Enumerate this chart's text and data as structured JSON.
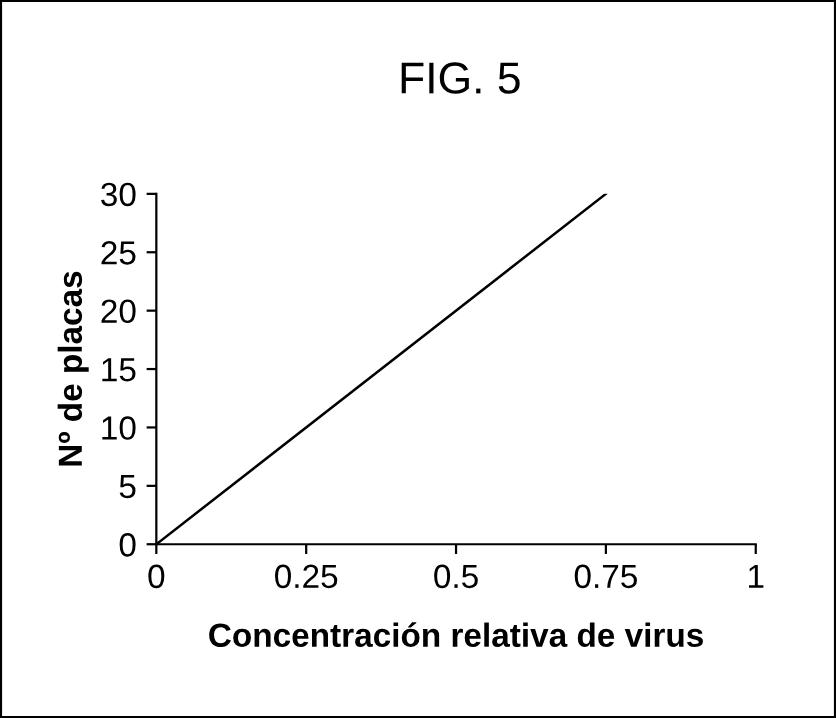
{
  "chart_data": {
    "type": "line",
    "title": "FIG. 5",
    "xlabel": "Concentración relativa de virus",
    "ylabel": "Nº de placas",
    "x": [
      0,
      0.75
    ],
    "series": [
      {
        "color": "#000000",
        "values": [
          0,
          30
        ]
      }
    ],
    "xlim": [
      0,
      1
    ],
    "xticks": [
      0,
      0.25,
      0.5,
      0.75,
      1
    ],
    "ylim": [
      0,
      30
    ],
    "yticks": [
      0,
      5,
      10,
      15,
      20,
      25,
      30
    ],
    "grid": false,
    "legend": false,
    "marker": "none",
    "line_style": "solid"
  }
}
